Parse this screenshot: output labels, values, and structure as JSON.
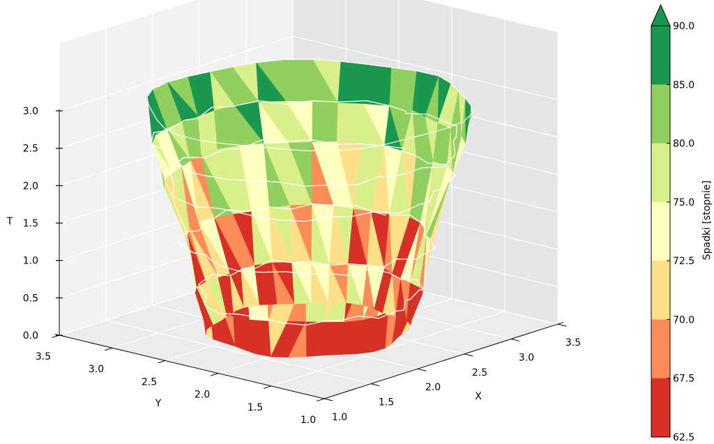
{
  "chart_data": {
    "type": "surface3d",
    "title": "",
    "axes": {
      "x": {
        "label": "X",
        "range": [
          1.0,
          3.5
        ],
        "ticks": [
          "1.0",
          "1.5",
          "2.0",
          "2.5",
          "3.0",
          "3.5"
        ]
      },
      "y": {
        "label": "Y",
        "range": [
          1.0,
          3.5
        ],
        "ticks": [
          "1.0",
          "1.5",
          "2.0",
          "2.5",
          "3.0",
          "3.5"
        ]
      },
      "z": {
        "label": "T",
        "range": [
          0.0,
          3.0
        ],
        "ticks": [
          "0.0",
          "0.5",
          "1.0",
          "1.5",
          "2.0",
          "2.5",
          "3.0"
        ]
      }
    },
    "grid": true,
    "surface": {
      "shape": "truncated cone (frustum), narrow at T=0, wide at T=3",
      "center": [
        2.25,
        2.25
      ],
      "radius_bottom": 0.7,
      "radius_top": 1.15,
      "t_range": [
        0.0,
        3.0
      ],
      "contour_lines_at_T": [
        0.5,
        1.2,
        2.0,
        2.5
      ]
    },
    "colorbar": {
      "label": "Spadki [stopnie]",
      "extend": "max",
      "boundaries": [
        62.5,
        67.5,
        70.0,
        72.5,
        75.0,
        80.0,
        85.0,
        90.0
      ],
      "tick_labels": [
        "62.5",
        "67.5",
        "70.0",
        "72.5",
        "75.0",
        "80.0",
        "85.0",
        "90.0"
      ],
      "colors": [
        "#d73027",
        "#fc8d59",
        "#fee08b",
        "#ffffbf",
        "#d9ef8b",
        "#91cf60",
        "#1a9850"
      ],
      "extend_color": "#1a9850"
    }
  }
}
